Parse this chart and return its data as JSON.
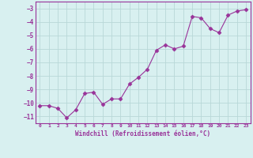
{
  "x": [
    0,
    1,
    2,
    3,
    4,
    5,
    6,
    7,
    8,
    9,
    10,
    11,
    12,
    13,
    14,
    15,
    16,
    17,
    18,
    19,
    20,
    21,
    22,
    23
  ],
  "y": [
    -10.2,
    -10.2,
    -10.4,
    -11.1,
    -10.5,
    -9.3,
    -9.2,
    -10.1,
    -9.7,
    -9.7,
    -8.6,
    -8.1,
    -7.5,
    -6.1,
    -5.7,
    -6.0,
    -5.8,
    -3.6,
    -3.7,
    -4.5,
    -4.8,
    -3.5,
    -3.2,
    -3.1
  ],
  "line_color": "#993399",
  "marker": "D",
  "marker_size": 2.5,
  "bg_color": "#d8f0f0",
  "grid_color": "#b8d8d8",
  "tick_label_color": "#993399",
  "xlabel": "Windchill (Refroidissement éolien,°C)",
  "xlabel_color": "#993399",
  "ylim": [
    -11.5,
    -2.5
  ],
  "xlim": [
    -0.5,
    23.5
  ],
  "yticks": [
    -3,
    -4,
    -5,
    -6,
    -7,
    -8,
    -9,
    -10,
    -11
  ],
  "xticks": [
    0,
    1,
    2,
    3,
    4,
    5,
    6,
    7,
    8,
    9,
    10,
    11,
    12,
    13,
    14,
    15,
    16,
    17,
    18,
    19,
    20,
    21,
    22,
    23
  ]
}
